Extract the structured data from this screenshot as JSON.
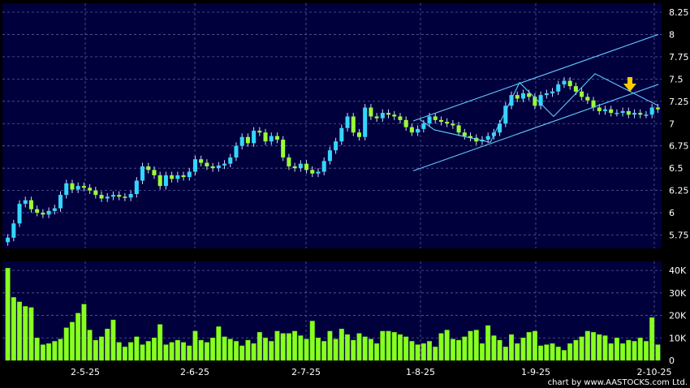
{
  "chart_data": [
    {
      "type": "candlestick",
      "title": "",
      "xlabel": "",
      "ylabel": "",
      "ylim": [
        5.6,
        8.35
      ],
      "grid": true,
      "y_ticks": [
        "5.75",
        "6",
        "6.25",
        "6.5",
        "6.75",
        "7",
        "7.25",
        "7.5",
        "7.75",
        "8",
        "8.25"
      ],
      "x_ticks": [
        "2-5-25",
        "2-6-25",
        "2-7-25",
        "1-8-25",
        "1-9-25",
        "2-10-25"
      ],
      "colors": {
        "up": "#33d6ff",
        "down": "#99ff33",
        "trendlines": "#5fc8ff",
        "background": "#00003c",
        "arrow": "#ffcc00"
      },
      "closes": [
        5.72,
        5.88,
        6.1,
        6.14,
        6.04,
        6.0,
        5.98,
        6.02,
        6.05,
        6.2,
        6.33,
        6.26,
        6.3,
        6.28,
        6.25,
        6.2,
        6.16,
        6.18,
        6.2,
        6.18,
        6.17,
        6.21,
        6.36,
        6.52,
        6.48,
        6.42,
        6.3,
        6.42,
        6.38,
        6.42,
        6.4,
        6.46,
        6.6,
        6.56,
        6.52,
        6.5,
        6.53,
        6.55,
        6.62,
        6.75,
        6.85,
        6.78,
        6.92,
        6.9,
        6.8,
        6.86,
        6.82,
        6.62,
        6.52,
        6.5,
        6.55,
        6.48,
        6.44,
        6.46,
        6.58,
        6.7,
        6.8,
        6.95,
        7.08,
        6.9,
        6.85,
        7.18,
        7.08,
        7.06,
        7.12,
        7.1,
        7.08,
        7.04,
        6.96,
        6.9,
        6.94,
        7.0,
        7.08,
        7.04,
        7.02,
        7.0,
        6.98,
        6.9,
        6.86,
        6.84,
        6.8,
        6.82,
        6.86,
        6.9,
        7.0,
        7.2,
        7.32,
        7.28,
        7.34,
        7.3,
        7.2,
        7.32,
        7.34,
        7.36,
        7.44,
        7.48,
        7.42,
        7.36,
        7.3,
        7.26,
        7.18,
        7.14,
        7.16,
        7.12,
        7.12,
        7.14,
        7.1,
        7.12,
        7.1,
        7.1,
        7.18,
        7.16
      ]
    },
    {
      "type": "bar",
      "title": "",
      "xlabel": "",
      "ylabel": "",
      "ylim": [
        0,
        44000
      ],
      "y_ticks": [
        "0",
        "10K",
        "20K",
        "30K",
        "40K"
      ],
      "values": [
        41000,
        28000,
        26000,
        24000,
        23500,
        10000,
        7000,
        7500,
        8500,
        9500,
        14500,
        17000,
        21000,
        25000,
        13500,
        9000,
        10500,
        14000,
        18000,
        8000,
        6000,
        8000,
        10500,
        7000,
        8500,
        10000,
        16000,
        7000,
        8000,
        9000,
        8000,
        6500,
        13000,
        9000,
        8000,
        10000,
        15000,
        10500,
        9500,
        8500,
        6500,
        9000,
        7500,
        12500,
        10000,
        8500,
        13000,
        12000,
        12000,
        13000,
        11000,
        9500,
        17500,
        10000,
        8500,
        13000,
        9500,
        14000,
        11500,
        9000,
        12000,
        10500,
        9500,
        7500,
        13000,
        13000,
        12500,
        11500,
        10500,
        8500,
        7000,
        7500,
        8500,
        6000,
        12000,
        13500,
        9500,
        9000,
        10500,
        13000,
        13500,
        7500,
        15500,
        11000,
        9000,
        6000,
        11500,
        7500,
        10000,
        12500,
        13000,
        6500,
        7000,
        7500,
        6000,
        4500,
        7500,
        9000,
        10500,
        13000,
        12500,
        11500,
        11000,
        7500,
        10000,
        7500,
        9000,
        8500,
        10000,
        8500,
        19000,
        7000
      ]
    }
  ]
}
